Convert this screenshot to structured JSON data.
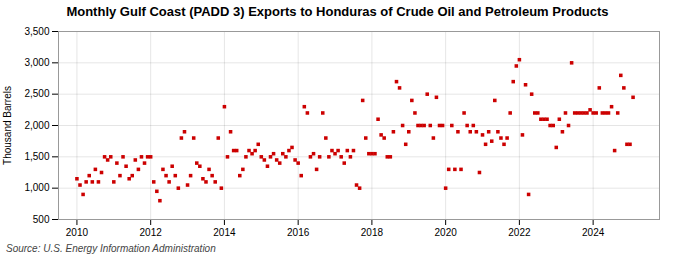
{
  "chart_data": {
    "type": "scatter",
    "title": "Monthly Gulf Coast (PADD 3) Exports to Honduras of Crude Oil and Petroleum Products",
    "ylabel": "Thousand Barrels",
    "caption": "Source: U.S. Energy Information Administration",
    "color": "#cc0000",
    "marker": "square",
    "grid": true,
    "xlim": [
      2009.5,
      2025.8
    ],
    "ylim": [
      500,
      3500
    ],
    "xticks": [
      2010,
      2012,
      2014,
      2016,
      2018,
      2020,
      2022,
      2024
    ],
    "yticks": [
      500,
      {
        "value": 1000,
        "label": "1,000"
      },
      {
        "value": 1500,
        "label": "1,500"
      },
      {
        "value": 2000,
        "label": "2,000"
      },
      {
        "value": 2500,
        "label": "2,500"
      },
      {
        "value": 3000,
        "label": "3,000"
      },
      {
        "value": 3500,
        "label": "3,500"
      }
    ],
    "x": [
      2010.0,
      2010.083,
      2010.167,
      2010.25,
      2010.333,
      2010.417,
      2010.5,
      2010.583,
      2010.667,
      2010.75,
      2010.833,
      2010.917,
      2011.0,
      2011.083,
      2011.167,
      2011.25,
      2011.333,
      2011.417,
      2011.5,
      2011.583,
      2011.667,
      2011.75,
      2011.833,
      2011.917,
      2012.0,
      2012.083,
      2012.167,
      2012.25,
      2012.333,
      2012.417,
      2012.5,
      2012.583,
      2012.667,
      2012.75,
      2012.833,
      2012.917,
      2013.0,
      2013.083,
      2013.167,
      2013.25,
      2013.333,
      2013.417,
      2013.5,
      2013.583,
      2013.667,
      2013.75,
      2013.833,
      2013.917,
      2014.0,
      2014.083,
      2014.167,
      2014.25,
      2014.333,
      2014.417,
      2014.5,
      2014.583,
      2014.667,
      2014.75,
      2014.833,
      2014.917,
      2015.0,
      2015.083,
      2015.167,
      2015.25,
      2015.333,
      2015.417,
      2015.5,
      2015.583,
      2015.667,
      2015.75,
      2015.833,
      2015.917,
      2016.0,
      2016.083,
      2016.167,
      2016.25,
      2016.333,
      2016.417,
      2016.5,
      2016.583,
      2016.667,
      2016.75,
      2016.833,
      2016.917,
      2017.0,
      2017.083,
      2017.167,
      2017.25,
      2017.333,
      2017.417,
      2017.5,
      2017.583,
      2017.667,
      2017.75,
      2017.833,
      2017.917,
      2018.0,
      2018.083,
      2018.167,
      2018.25,
      2018.333,
      2018.417,
      2018.5,
      2018.583,
      2018.667,
      2018.75,
      2018.833,
      2018.917,
      2019.0,
      2019.083,
      2019.167,
      2019.25,
      2019.333,
      2019.417,
      2019.5,
      2019.583,
      2019.667,
      2019.75,
      2019.833,
      2019.917,
      2020.0,
      2020.083,
      2020.167,
      2020.25,
      2020.333,
      2020.417,
      2020.5,
      2020.583,
      2020.667,
      2020.75,
      2020.833,
      2020.917,
      2021.0,
      2021.083,
      2021.167,
      2021.25,
      2021.333,
      2021.417,
      2021.5,
      2021.583,
      2021.667,
      2021.75,
      2021.833,
      2021.917,
      2022.0,
      2022.083,
      2022.167,
      2022.25,
      2022.333,
      2022.417,
      2022.5,
      2022.583,
      2022.667,
      2022.75,
      2022.833,
      2022.917,
      2023.0,
      2023.083,
      2023.167,
      2023.25,
      2023.333,
      2023.417,
      2023.5,
      2023.583,
      2023.667,
      2023.75,
      2023.833,
      2023.917,
      2024.0,
      2024.083,
      2024.167,
      2024.25,
      2024.333,
      2024.417,
      2024.5,
      2024.583,
      2024.667,
      2024.75,
      2024.833,
      2024.917,
      2025.0,
      2025.083
    ],
    "values": [
      1150,
      1050,
      900,
      1100,
      1200,
      1100,
      1300,
      1100,
      1250,
      1500,
      1450,
      1500,
      1100,
      1400,
      1200,
      1500,
      1350,
      1150,
      1200,
      1450,
      1300,
      1500,
      1400,
      1500,
      1500,
      1100,
      950,
      800,
      1300,
      1200,
      1100,
      1350,
      1200,
      1000,
      1800,
      1900,
      1050,
      1200,
      1800,
      1400,
      1350,
      1150,
      1100,
      1300,
      1200,
      1100,
      1800,
      1000,
      2300,
      1500,
      1900,
      1600,
      1600,
      1200,
      1300,
      1500,
      1600,
      1550,
      1600,
      1700,
      1500,
      1450,
      1350,
      1500,
      1550,
      1450,
      1400,
      1550,
      1500,
      1600,
      1650,
      1450,
      1400,
      1200,
      2300,
      2200,
      1500,
      1550,
      1300,
      1500,
      2200,
      1800,
      1500,
      1600,
      1550,
      1600,
      1500,
      1400,
      1600,
      1500,
      1600,
      1050,
      1000,
      2400,
      1800,
      1550,
      1550,
      1550,
      2100,
      1850,
      1800,
      1500,
      1500,
      1900,
      2700,
      2600,
      2000,
      1700,
      1900,
      2400,
      2200,
      2000,
      2000,
      2000,
      2500,
      2000,
      1800,
      2450,
      2000,
      2000,
      1000,
      1300,
      2000,
      1300,
      1900,
      1300,
      2200,
      2000,
      1900,
      2000,
      1900,
      1250,
      1850,
      1700,
      1900,
      1750,
      2400,
      1900,
      1800,
      1700,
      1800,
      2200,
      2700,
      2950,
      3050,
      1850,
      2650,
      900,
      2500,
      2200,
      2200,
      2100,
      2100,
      2100,
      2000,
      2000,
      1650,
      2100,
      1900,
      2200,
      2000,
      3000,
      2200,
      2200,
      2200,
      2200,
      2200,
      2250,
      2200,
      2200,
      2600,
      2200,
      2200,
      2200,
      2300,
      1600,
      2200,
      2800,
      2600,
      1700,
      1700,
      2450
    ]
  }
}
